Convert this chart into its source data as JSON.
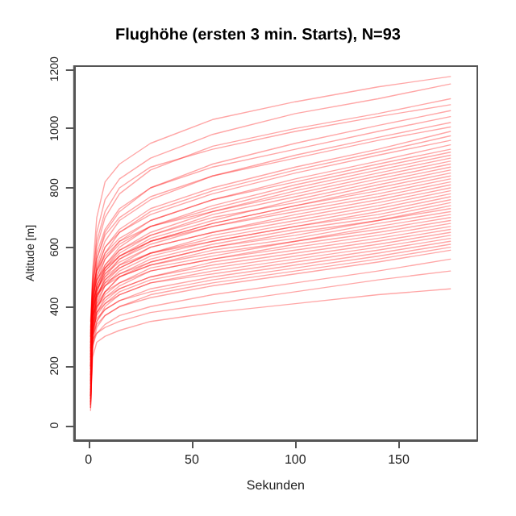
{
  "chart_data": {
    "type": "line",
    "title": "Flughöhe (ersten 3 min. Starts), N=93",
    "xlabel": "Sekunden",
    "ylabel": "Altitude [m]",
    "color": "#ff0000",
    "xlim": [
      -7,
      188
    ],
    "ylim": [
      -50,
      1210
    ],
    "xticks": [
      0,
      50,
      100,
      150
    ],
    "yticks": [
      0,
      200,
      400,
      600,
      800,
      1000,
      1200
    ],
    "grid": false,
    "marker": "none",
    "line_style": "solid",
    "x": [
      1,
      2,
      4,
      8,
      15,
      30,
      60,
      100,
      140,
      175
    ],
    "series": [
      {
        "values": [
          300,
          520,
          700,
          820,
          880,
          950,
          1030,
          1090,
          1140,
          1175
        ]
      },
      {
        "values": [
          250,
          480,
          650,
          760,
          830,
          900,
          980,
          1050,
          1100,
          1150
        ]
      },
      {
        "values": [
          200,
          450,
          600,
          700,
          780,
          860,
          940,
          1000,
          1050,
          1100
        ]
      },
      {
        "values": [
          350,
          500,
          620,
          720,
          800,
          870,
          930,
          990,
          1040,
          1080
        ]
      },
      {
        "values": [
          150,
          400,
          560,
          650,
          720,
          800,
          880,
          950,
          1010,
          1060
        ]
      },
      {
        "values": [
          280,
          460,
          580,
          660,
          730,
          800,
          870,
          930,
          990,
          1040
        ]
      },
      {
        "values": [
          100,
          380,
          540,
          620,
          690,
          760,
          840,
          910,
          970,
          1020
        ]
      },
      {
        "values": [
          320,
          480,
          560,
          640,
          700,
          770,
          840,
          900,
          960,
          1005
        ]
      },
      {
        "values": [
          220,
          420,
          520,
          600,
          660,
          730,
          800,
          870,
          930,
          990
        ]
      },
      {
        "values": [
          180,
          400,
          500,
          580,
          650,
          720,
          790,
          860,
          920,
          975
        ]
      },
      {
        "values": [
          260,
          440,
          530,
          600,
          650,
          710,
          780,
          850,
          910,
          960
        ]
      },
      {
        "values": [
          90,
          350,
          480,
          560,
          620,
          690,
          760,
          830,
          890,
          945
        ]
      },
      {
        "values": [
          300,
          450,
          520,
          580,
          630,
          690,
          760,
          820,
          880,
          930
        ]
      },
      {
        "values": [
          150,
          380,
          470,
          540,
          600,
          670,
          740,
          810,
          870,
          920
        ]
      },
      {
        "values": [
          240,
          420,
          500,
          560,
          610,
          670,
          730,
          800,
          860,
          910
        ]
      },
      {
        "values": [
          70,
          320,
          450,
          530,
          590,
          650,
          720,
          790,
          850,
          900
        ]
      },
      {
        "values": [
          330,
          460,
          520,
          570,
          620,
          670,
          720,
          780,
          840,
          890
        ]
      },
      {
        "values": [
          200,
          390,
          470,
          530,
          580,
          640,
          710,
          770,
          830,
          880
        ]
      },
      {
        "values": [
          120,
          360,
          450,
          520,
          570,
          630,
          690,
          760,
          820,
          870
        ]
      },
      {
        "values": [
          280,
          430,
          490,
          540,
          590,
          640,
          700,
          750,
          810,
          860
        ]
      },
      {
        "values": [
          60,
          300,
          430,
          500,
          560,
          620,
          680,
          740,
          800,
          850
        ]
      },
      {
        "values": [
          230,
          400,
          470,
          520,
          570,
          620,
          680,
          740,
          790,
          840
        ]
      },
      {
        "values": [
          170,
          370,
          450,
          510,
          560,
          610,
          670,
          730,
          780,
          830
        ]
      },
      {
        "values": [
          310,
          440,
          490,
          530,
          570,
          620,
          670,
          720,
          770,
          820
        ]
      },
      {
        "values": [
          100,
          340,
          430,
          490,
          540,
          600,
          650,
          710,
          760,
          810
        ]
      },
      {
        "values": [
          260,
          410,
          460,
          510,
          550,
          600,
          650,
          700,
          750,
          800
        ]
      },
      {
        "values": [
          140,
          350,
          430,
          480,
          530,
          580,
          640,
          690,
          740,
          790
        ]
      },
      {
        "values": [
          210,
          380,
          440,
          490,
          530,
          580,
          630,
          680,
          730,
          780
        ]
      },
      {
        "values": [
          80,
          310,
          410,
          470,
          520,
          570,
          620,
          670,
          720,
          770
        ]
      },
      {
        "values": [
          290,
          420,
          460,
          500,
          540,
          580,
          620,
          670,
          710,
          760
        ]
      },
      {
        "values": [
          190,
          360,
          420,
          470,
          510,
          560,
          610,
          660,
          700,
          750
        ]
      },
      {
        "values": [
          50,
          280,
          390,
          450,
          500,
          550,
          600,
          650,
          690,
          740
        ]
      },
      {
        "values": [
          240,
          390,
          440,
          480,
          510,
          550,
          600,
          640,
          690,
          730
        ]
      },
      {
        "values": [
          130,
          330,
          400,
          450,
          500,
          540,
          590,
          630,
          680,
          720
        ]
      },
      {
        "values": [
          270,
          400,
          440,
          470,
          500,
          540,
          580,
          620,
          670,
          710
        ]
      },
      {
        "values": [
          160,
          340,
          400,
          440,
          480,
          530,
          570,
          620,
          660,
          700
        ]
      },
      {
        "values": [
          90,
          300,
          380,
          430,
          470,
          520,
          560,
          610,
          650,
          690
        ]
      },
      {
        "values": [
          220,
          370,
          410,
          450,
          480,
          520,
          560,
          600,
          640,
          680
        ]
      },
      {
        "values": [
          110,
          310,
          380,
          420,
          460,
          500,
          550,
          590,
          630,
          670
        ]
      },
      {
        "values": [
          250,
          370,
          400,
          430,
          460,
          500,
          540,
          580,
          620,
          660
        ]
      },
      {
        "values": [
          140,
          320,
          370,
          410,
          450,
          490,
          530,
          570,
          610,
          650
        ]
      },
      {
        "values": [
          60,
          270,
          350,
          400,
          440,
          480,
          520,
          560,
          600,
          640
        ]
      },
      {
        "values": [
          200,
          340,
          380,
          410,
          440,
          480,
          510,
          550,
          590,
          630
        ]
      },
      {
        "values": [
          120,
          300,
          350,
          390,
          420,
          460,
          500,
          540,
          580,
          620
        ]
      },
      {
        "values": [
          230,
          330,
          360,
          390,
          420,
          450,
          490,
          530,
          570,
          610
        ]
      },
      {
        "values": [
          80,
          260,
          330,
          370,
          400,
          440,
          480,
          520,
          560,
          600
        ]
      },
      {
        "values": [
          170,
          300,
          340,
          370,
          400,
          430,
          470,
          510,
          550,
          590
        ]
      },
      {
        "values": [
          100,
          270,
          310,
          340,
          370,
          400,
          440,
          480,
          520,
          560
        ]
      },
      {
        "values": [
          190,
          290,
          310,
          330,
          350,
          380,
          410,
          450,
          490,
          520
        ]
      },
      {
        "values": [
          70,
          230,
          280,
          300,
          320,
          350,
          380,
          410,
          440,
          460
        ]
      }
    ]
  }
}
